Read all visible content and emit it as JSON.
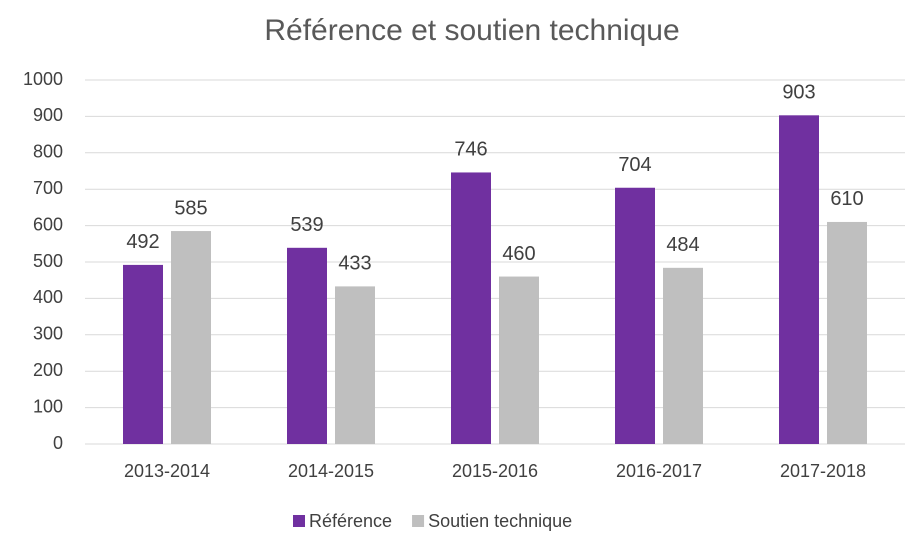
{
  "chart_data": {
    "type": "bar",
    "title": "Référence et soutien technique",
    "categories": [
      "2013-2014",
      "2014-2015",
      "2015-2016",
      "2016-2017",
      "2017-2018"
    ],
    "series": [
      {
        "name": "Référence",
        "color": "#7030a0",
        "values": [
          492,
          539,
          746,
          704,
          903
        ]
      },
      {
        "name": "Soutien technique",
        "color": "#bfbfbf",
        "values": [
          585,
          433,
          460,
          484,
          610
        ]
      }
    ],
    "ylim": [
      0,
      1000
    ],
    "yticks": [
      0,
      100,
      200,
      300,
      400,
      500,
      600,
      700,
      800,
      900,
      1000
    ],
    "grid": true,
    "legend": "bottom"
  }
}
